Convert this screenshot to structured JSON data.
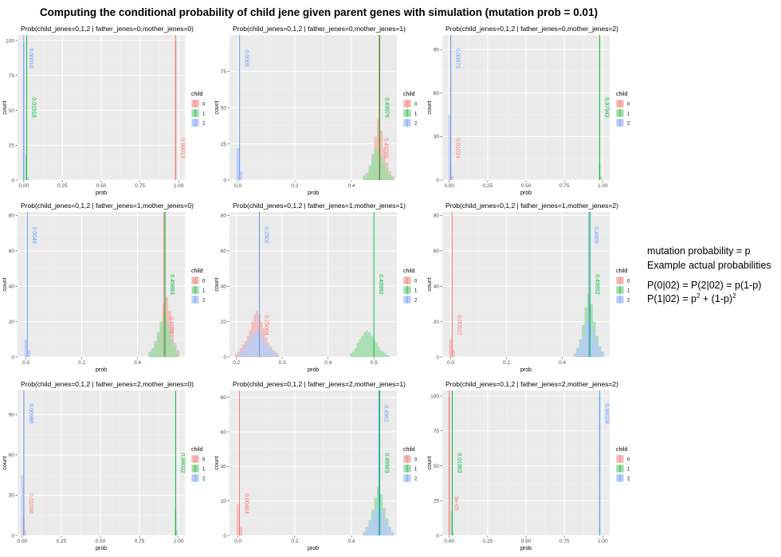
{
  "title": "Computing the conditional probability of child jene given parent genes with simulation (mutation prob = 0.01)",
  "legend_title": "child",
  "legend_items": [
    "0",
    "1",
    "2"
  ],
  "series_colors": {
    "0": "#F8766D",
    "1": "#00BA38",
    "2": "#619CFF"
  },
  "annotation": {
    "line1": "mutation probability = p",
    "line2": "Example actual probabilities",
    "line3": "P(0|02) = P(2|02) = p(1-p)",
    "line4_prefix": "P(1|02) = p",
    "line4_sup1": "2",
    "line4_mid": " + (1-p)",
    "line4_sup2": "2"
  },
  "chart_data": [
    {
      "type": "histogram",
      "title": "Prob(child_jenes=0,1,2 | father_jenes=0,mother_jenes=0)",
      "xlabel": "prob",
      "ylabel": "count",
      "xlim": [
        -0.04,
        1.04
      ],
      "ylim": [
        0,
        104
      ],
      "xticks": [
        0,
        0.25,
        0.5,
        0.75,
        1
      ],
      "xtick_labels": [
        "0.00",
        "0.25",
        "0.50",
        "0.75",
        "1.00"
      ],
      "yticks": [
        0,
        25,
        50,
        75,
        100
      ],
      "means": [
        0.98013,
        0.01918,
        0.00016
      ],
      "mean_labels": [
        "0.98013",
        "0.01918",
        "0.00016"
      ],
      "hist": [
        {
          "series": "0",
          "center": 0.98,
          "width": 0.01,
          "counts": [
            100
          ]
        },
        {
          "series": "1",
          "center": 0.015,
          "width": 0.01,
          "counts": [
            18,
            2
          ]
        },
        {
          "series": "2",
          "center": 0.0,
          "width": 0.01,
          "counts": [
            98
          ]
        }
      ]
    },
    {
      "type": "histogram",
      "title": "Prob(child_jenes=0,1,2 | father_jenes=0,mother_jenes=1)",
      "xlabel": "prob",
      "ylabel": "count",
      "xlim": [
        -0.03,
        0.56
      ],
      "ylim": [
        0,
        100
      ],
      "xticks": [
        0,
        0.2,
        0.4
      ],
      "xtick_labels": [
        "0.0",
        "0.2",
        "0.4"
      ],
      "yticks": [
        0,
        25,
        50,
        75
      ],
      "means": [
        0.49705,
        0.49976,
        0.0055
      ],
      "mean_labels": [
        "0.49705",
        "0.49976",
        "0.0055"
      ],
      "hist": [
        {
          "series": "0",
          "center": 0.445,
          "width": 0.01,
          "counts": [
            2,
            4,
            8,
            18,
            30,
            42,
            34,
            22,
            12,
            6,
            3
          ]
        },
        {
          "series": "1",
          "center": 0.445,
          "width": 0.01,
          "counts": [
            3,
            5,
            10,
            16,
            22,
            20,
            16,
            12,
            8,
            4,
            2
          ]
        },
        {
          "series": "2",
          "center": 0.0,
          "width": 0.01,
          "counts": [
            22,
            6
          ]
        }
      ]
    },
    {
      "type": "histogram",
      "title": "Prob(child_jenes=0,1,2 | father_jenes=0,mother_jenes=2)",
      "xlabel": "prob",
      "ylabel": "count",
      "xlim": [
        -0.045,
        1.045
      ],
      "ylim": [
        0,
        100
      ],
      "xticks": [
        0,
        0.25,
        0.5,
        0.75,
        1
      ],
      "xtick_labels": [
        "0.00",
        "0.25",
        "0.50",
        "0.75",
        "1.00"
      ],
      "yticks": [
        0,
        30,
        60,
        90
      ],
      "means": [
        0.01024,
        0.97943,
        0.00973
      ],
      "mean_labels": [
        "0.01024",
        "0.97943",
        "0.00973"
      ],
      "hist": [
        {
          "series": "0",
          "center": 0.01,
          "width": 0.01,
          "counts": [
            10,
            3
          ]
        },
        {
          "series": "1",
          "center": 0.98,
          "width": 0.01,
          "counts": [
            12,
            3
          ]
        },
        {
          "series": "2",
          "center": 0.0,
          "width": 0.01,
          "counts": [
            45,
            8
          ]
        }
      ]
    },
    {
      "type": "histogram",
      "title": "Prob(child_jenes=0,1,2 | father_jenes=1,mother_jenes=0)",
      "xlabel": "prob",
      "ylabel": "count",
      "xlim": [
        -0.03,
        0.57
      ],
      "ylim": [
        0,
        82
      ],
      "xticks": [
        0,
        0.2,
        0.4
      ],
      "xtick_labels": [
        "0.0",
        "0.2",
        "0.4"
      ],
      "yticks": [
        0,
        20,
        40,
        60,
        80
      ],
      "means": [
        0.4953,
        0.49883,
        0.0049
      ],
      "mean_labels": [
        "0.4953",
        "0.49883",
        "0.0049"
      ],
      "hist": [
        {
          "series": "0",
          "center": 0.445,
          "width": 0.01,
          "counts": [
            2,
            4,
            7,
            12,
            20,
            30,
            34,
            26,
            16,
            8,
            4
          ]
        },
        {
          "series": "1",
          "center": 0.445,
          "width": 0.01,
          "counts": [
            3,
            5,
            9,
            14,
            20,
            24,
            20,
            15,
            10,
            6,
            2
          ]
        },
        {
          "series": "2",
          "center": 0.0,
          "width": 0.01,
          "counts": [
            10,
            4
          ]
        }
      ]
    },
    {
      "type": "histogram",
      "title": "Prob(child_jenes=0,1,2 | father_jenes=1,mother_jenes=1)",
      "xlabel": "prob",
      "ylabel": "count",
      "xlim": [
        0.185,
        0.55
      ],
      "ylim": [
        0,
        82
      ],
      "xticks": [
        0.2,
        0.3,
        0.4,
        0.5
      ],
      "xtick_labels": [
        "0.2",
        "0.3",
        "0.4",
        "0.5"
      ],
      "yticks": [
        0,
        20,
        40,
        60,
        80
      ],
      "means": [
        0.25004,
        0.49992,
        0.2502
      ],
      "mean_labels": [
        "0.25004",
        "0.49992",
        "0.2502"
      ],
      "hist": [
        {
          "series": "0",
          "center": 0.2,
          "width": 0.005,
          "counts": [
            2,
            3,
            5,
            7,
            9,
            12,
            15,
            20,
            24,
            26,
            24,
            20,
            16,
            11,
            8,
            6,
            4,
            3,
            2
          ]
        },
        {
          "series": "1",
          "center": 0.45,
          "width": 0.005,
          "counts": [
            2,
            3,
            5,
            8,
            10,
            12,
            14,
            15,
            14,
            12,
            10,
            8,
            6,
            4,
            3,
            2,
            1
          ]
        },
        {
          "series": "2",
          "center": 0.205,
          "width": 0.005,
          "counts": [
            2,
            3,
            5,
            7,
            9,
            11,
            13,
            14,
            15,
            14,
            12,
            10,
            8,
            6,
            5,
            3,
            2
          ]
        }
      ]
    },
    {
      "type": "histogram",
      "title": "Prob(child_jenes=0,1,2 | father_jenes=1,mother_jenes=2)",
      "xlabel": "prob",
      "ylabel": "count",
      "xlim": [
        -0.03,
        0.57
      ],
      "ylim": [
        0,
        82
      ],
      "xticks": [
        0,
        0.2,
        0.4
      ],
      "xtick_labels": [
        "0.0",
        "0.2",
        "0.4"
      ],
      "yticks": [
        0,
        20,
        40,
        60,
        80
      ],
      "means": [
        0.00522,
        0.49952,
        0.4955
      ],
      "mean_labels": [
        "0.00522",
        "0.49952",
        "0.4955"
      ],
      "hist": [
        {
          "series": "0",
          "center": 0.0,
          "width": 0.01,
          "counts": [
            10,
            4
          ]
        },
        {
          "series": "1",
          "center": 0.445,
          "width": 0.01,
          "counts": [
            2,
            5,
            10,
            18,
            28,
            36,
            30,
            20,
            12,
            6,
            3
          ]
        },
        {
          "series": "2",
          "center": 0.445,
          "width": 0.01,
          "counts": [
            2,
            4,
            8,
            12,
            18,
            22,
            19,
            14,
            9,
            5,
            2
          ]
        }
      ]
    },
    {
      "type": "histogram",
      "title": "Prob(child_jenes=0,1,2 | father_jenes=2,mother_jenes=0)",
      "xlabel": "prob",
      "ylabel": "count",
      "xlim": [
        -0.03,
        1.04
      ],
      "ylim": [
        0,
        108
      ],
      "xticks": [
        0,
        0.25,
        0.5,
        0.75,
        1
      ],
      "xtick_labels": [
        "0.00",
        "0.25",
        "0.50",
        "0.75",
        "1.00"
      ],
      "yticks": [
        0,
        30,
        60,
        90
      ],
      "means": [
        0.01036,
        0.98032,
        0.00986
      ],
      "mean_labels": [
        "0.01036",
        "0.98032",
        "0.00986"
      ],
      "hist": [
        {
          "series": "0",
          "center": 0.01,
          "width": 0.01,
          "counts": [
            14,
            4
          ]
        },
        {
          "series": "1",
          "center": 0.98,
          "width": 0.01,
          "counts": [
            20,
            4
          ]
        },
        {
          "series": "2",
          "center": 0.0,
          "width": 0.01,
          "counts": [
            45,
            10
          ]
        }
      ]
    },
    {
      "type": "histogram",
      "title": "Prob(child_jenes=0,1,2 | father_jenes=2,mother_jenes=1)",
      "xlabel": "prob",
      "ylabel": "count",
      "xlim": [
        -0.03,
        0.56
      ],
      "ylim": [
        0,
        84
      ],
      "xticks": [
        0,
        0.2,
        0.4
      ],
      "xtick_labels": [
        "0.0",
        "0.2",
        "0.4"
      ],
      "yticks": [
        0,
        20,
        40,
        60,
        80
      ],
      "means": [
        0.00484,
        0.49963,
        0.4962
      ],
      "mean_labels": [
        "0.00484",
        "0.49963",
        "0.4962"
      ],
      "hist": [
        {
          "series": "0",
          "center": 0.0,
          "width": 0.01,
          "counts": [
            18,
            5
          ]
        },
        {
          "series": "1",
          "center": 0.445,
          "width": 0.01,
          "counts": [
            2,
            5,
            9,
            15,
            22,
            28,
            24,
            16,
            10,
            5,
            2
          ]
        },
        {
          "series": "2",
          "center": 0.445,
          "width": 0.01,
          "counts": [
            2,
            4,
            7,
            11,
            15,
            18,
            15,
            11,
            7,
            4,
            2
          ]
        }
      ]
    },
    {
      "type": "histogram",
      "title": "Prob(child_jenes=0,1,2 | father_jenes=2,mother_jenes=2)",
      "xlabel": "prob",
      "ylabel": "count",
      "xlim": [
        -0.045,
        1.045
      ],
      "ylim": [
        0,
        104
      ],
      "xticks": [
        0,
        0.25,
        0.5,
        0.75,
        1
      ],
      "xtick_labels": [
        "0.00",
        "0.25",
        "0.50",
        "0.75",
        "1.00"
      ],
      "yticks": [
        0,
        25,
        50,
        75,
        100
      ],
      "means": [
        9e-05,
        0.01963,
        0.98028
      ],
      "mean_labels": [
        "9e-05",
        "0.01963",
        "0.98028"
      ],
      "hist": [
        {
          "series": "0",
          "center": 0.0,
          "width": 0.01,
          "counts": [
            100
          ]
        },
        {
          "series": "1",
          "center": 0.015,
          "width": 0.01,
          "counts": [
            18,
            2
          ]
        },
        {
          "series": "2",
          "center": 0.98,
          "width": 0.01,
          "counts": [
            100
          ]
        }
      ]
    }
  ]
}
